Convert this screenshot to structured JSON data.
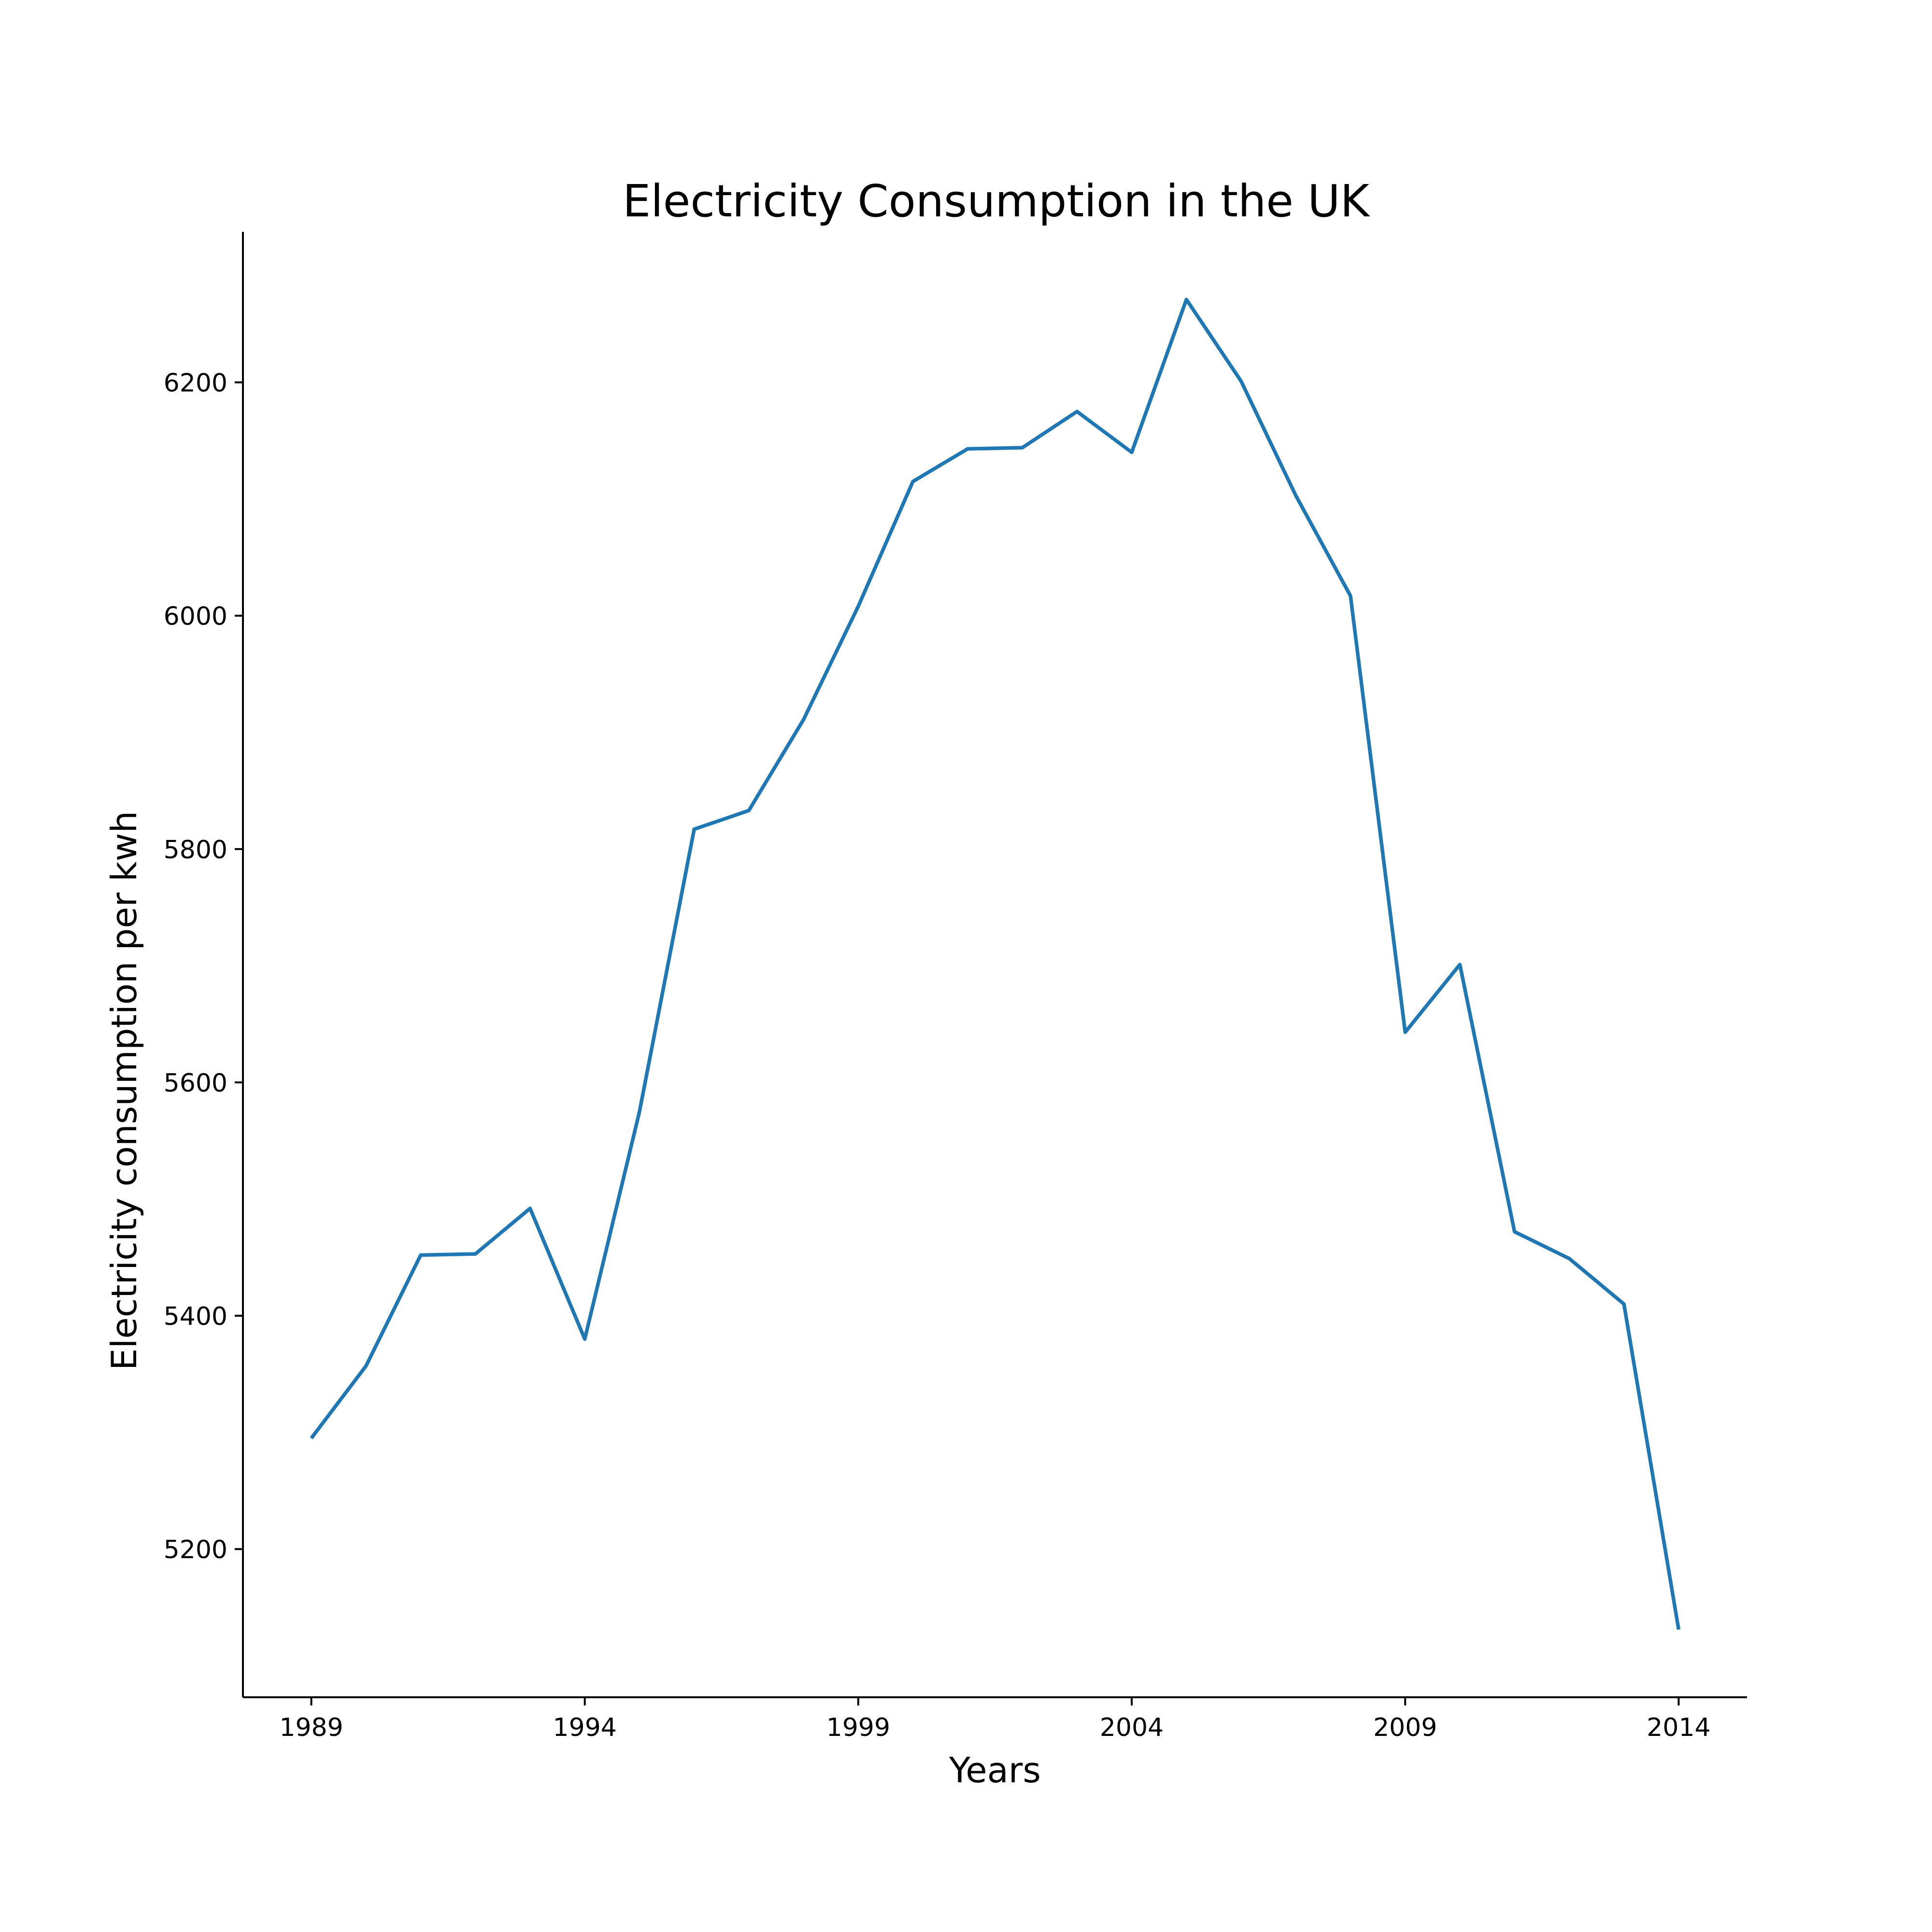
{
  "chart_data": {
    "type": "line",
    "title": "Electricity Consumption in the UK",
    "xlabel": "Years",
    "ylabel": "Electricity consumption per kwh",
    "x": [
      1989,
      1990,
      1991,
      1992,
      1993,
      1994,
      1995,
      1996,
      1997,
      1998,
      1999,
      2000,
      2001,
      2002,
      2003,
      2004,
      2005,
      2006,
      2007,
      2008,
      2009,
      2010,
      2011,
      2012,
      2013,
      2014
    ],
    "series": [
      {
        "values": [
          5295,
          5357,
          5452,
          5453,
          5492,
          5380,
          5575,
          5817,
          5833,
          5911,
          6008,
          6115,
          6143,
          6144,
          6175,
          6140,
          6271,
          6201,
          6103,
          6017,
          5643,
          5701,
          5472,
          5449,
          5410,
          5131
        ],
        "color": "#1f77b4"
      }
    ],
    "xticks": [
      "1989",
      "1994",
      "1999",
      "2004",
      "2009",
      "2014"
    ],
    "yticks": [
      "5200",
      "5400",
      "5600",
      "5800",
      "6000",
      "6200"
    ],
    "xlim": [
      1987.75,
      2015.25
    ],
    "ylim": [
      5073,
      6329
    ],
    "grid": false,
    "legend": "none"
  }
}
